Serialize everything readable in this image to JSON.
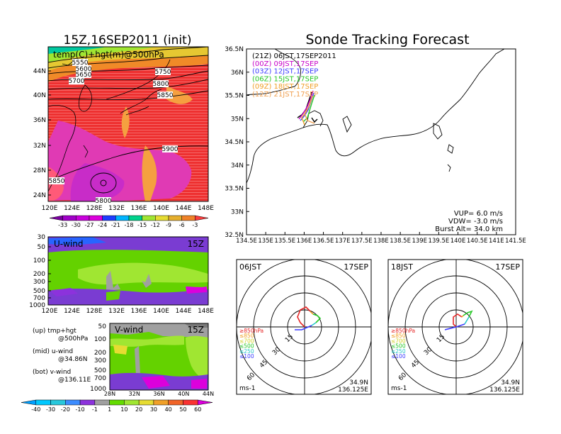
{
  "left_title": "15Z,16SEP2011 (init)",
  "right_title": "Sonde Tracking Forecast",
  "top_map": {
    "label": "temp(C)+hgt(m)@500hPa",
    "lat_ticks": [
      "44N",
      "40N",
      "36N",
      "32N",
      "28N",
      "24N"
    ],
    "lon_ticks": [
      "120E",
      "124E",
      "128E",
      "132E",
      "136E",
      "140E",
      "144E",
      "148E"
    ],
    "contour_labels": [
      {
        "text": "5550"
      },
      {
        "text": "5600"
      },
      {
        "text": "5650"
      },
      {
        "text": "5700"
      },
      {
        "text": "5750"
      },
      {
        "text": "5800"
      },
      {
        "text": "5850"
      },
      {
        "text": "5900"
      },
      {
        "text": "5850"
      },
      {
        "text": "5800"
      }
    ],
    "colorbar": [
      "-33",
      "-30",
      "-27",
      "-24",
      "-21",
      "-18",
      "-15",
      "-12",
      "-9",
      "-6",
      "-3"
    ],
    "colorbar_colors": [
      "#7a00a0",
      "#a000c8",
      "#c800dc",
      "#dc00dc",
      "#1e3cff",
      "#00b4ff",
      "#00d28c",
      "#a0e632",
      "#e6dc32",
      "#e6af2d",
      "#f08228",
      "#fa3c3c"
    ]
  },
  "u_wind": {
    "label": "U-wind",
    "time": "15Z",
    "y_ticks": [
      "30",
      "50",
      "100",
      "200",
      "300",
      "500",
      "700",
      "1000"
    ],
    "x_ticks": [
      "120E",
      "124E",
      "128E",
      "132E",
      "136E",
      "140E",
      "144E",
      "148E"
    ]
  },
  "v_wind": {
    "label": "V-wind",
    "time": "15Z",
    "y_ticks": [
      "50",
      "100",
      "200",
      "300",
      "500",
      "700",
      "1000"
    ],
    "x_ticks": [
      "28N",
      "32N",
      "36N",
      "40N",
      "44N"
    ]
  },
  "wind_colorbar": {
    "labels": [
      "-40",
      "-30",
      "-20",
      "-10",
      "-1",
      "1",
      "10",
      "20",
      "30",
      "40",
      "50",
      "60"
    ],
    "colors": [
      "#00a0ff",
      "#00c8ff",
      "#28c8dc",
      "#3c8cff",
      "#8c32dc",
      "#a0a0a0",
      "#64dc00",
      "#a0e632",
      "#e6dc32",
      "#f0a028",
      "#f06428",
      "#fa3232",
      "#dc00dc"
    ]
  },
  "legend": {
    "up": "(up)  tmp+hgt",
    "up2": "@500hPa",
    "mid": "(mid)  u-wind",
    "mid2": "@34.86N",
    "bot": "(bot)  v-wind",
    "bot2": "@136.11E"
  },
  "track_map": {
    "lat_ticks": [
      "36.5N",
      "36N",
      "35.5N",
      "35N",
      "34.5N",
      "34N",
      "33.5N",
      "33N",
      "32.5N"
    ],
    "lon_ticks": [
      "134.5E",
      "135E",
      "135.5E",
      "136E",
      "136.5E",
      "137E",
      "137.5E",
      "138E",
      "138.5E",
      "139E",
      "139.5E",
      "140E",
      "140.5E",
      "141E",
      "141.5E"
    ],
    "times": [
      {
        "text": "(21Z)  06JST,17SEP2011",
        "color": "#000000"
      },
      {
        "text": "(00Z)  09JST,17SEP",
        "color": "#c800c8"
      },
      {
        "text": "(03Z)  12JST,17SEP",
        "color": "#3c3cff"
      },
      {
        "text": "(06Z)  15JST,17SEP",
        "color": "#28c828"
      },
      {
        "text": "(09Z)  18JST,17SEP",
        "color": "#f0a028"
      },
      {
        "text": "(12Z)  21JST,17SEP",
        "color": "#f0a050"
      }
    ],
    "vup": "VUP=  6.0  m/s",
    "vdw": "VDW=  -3.0  m/s",
    "burst": "Burst Alt=  34.0  km"
  },
  "hodographs": [
    {
      "time": "06JST",
      "date": "17SEP",
      "lat": "34.9N",
      "lon": "136.125E",
      "unit": "ms-1"
    },
    {
      "time": "18JST",
      "date": "17SEP",
      "lat": "34.9N",
      "lon": "136.125E",
      "unit": "ms-1"
    }
  ],
  "hodo_rings": [
    "15",
    "30",
    "45",
    "60"
  ],
  "hodo_levels": [
    {
      "text": "≥850hPa",
      "color": "#e62828"
    },
    {
      "text": "≤850",
      "color": "#f0a028"
    },
    {
      "text": "≤700",
      "color": "#d2d228"
    },
    {
      "text": "≤500",
      "color": "#28c828"
    },
    {
      "text": "≤250",
      "color": "#28c8c8"
    },
    {
      "text": "≤100",
      "color": "#3c3cff"
    }
  ]
}
